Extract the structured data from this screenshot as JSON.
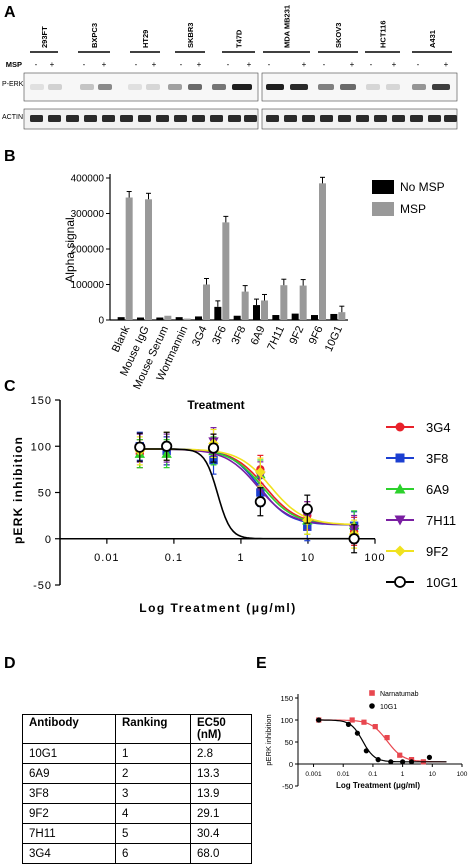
{
  "panel_labels": {
    "a": "A",
    "b": "B",
    "c": "C",
    "d": "D",
    "e": "E"
  },
  "panel_a": {
    "cell_lines": [
      "293FT",
      "BXPC3",
      "HT29",
      "SKBR3",
      "T47D",
      "MDA MB231",
      "SKOV3",
      "HCT116",
      "A431"
    ],
    "msp_label": "MSP",
    "minus": "-",
    "plus": "+",
    "row_labels": [
      "P-ERK",
      "ACTIN"
    ]
  },
  "chart_data": [
    {
      "type": "bar",
      "panel": "B",
      "ylabel": "Alpha signal",
      "ylim": [
        0,
        400000
      ],
      "yticks": [
        "0",
        "100000",
        "200000",
        "300000",
        "400000"
      ],
      "categories": [
        "Blank",
        "Mouse IgG",
        "Mouse Serum",
        "Wortmannin",
        "3G4",
        "3F6",
        "3F8",
        "6A9",
        "7H11",
        "9F2",
        "9F6",
        "10G1"
      ],
      "series": [
        {
          "name": "No MSP",
          "color": "#000000",
          "values": [
            8000,
            7000,
            7000,
            8000,
            10000,
            37000,
            12000,
            42000,
            14000,
            18000,
            14000,
            17000
          ]
        },
        {
          "name": "MSP",
          "color": "#999999",
          "values": [
            345000,
            340000,
            12000,
            4000,
            100000,
            275000,
            80000,
            55000,
            98000,
            97000,
            385000,
            22000
          ]
        }
      ]
    },
    {
      "type": "line",
      "panel": "C",
      "title": "Treatment",
      "xlabel": "Log Treatment (μg/ml)",
      "ylabel": "pERK inhibition",
      "xscale": "log",
      "xticks": [
        "0.01",
        "0.1",
        "1",
        "10",
        "100"
      ],
      "yticks": [
        "-50",
        "0",
        "50",
        "100",
        "150"
      ],
      "ylim": [
        -50,
        150
      ],
      "x": [
        0.031,
        0.078,
        0.39,
        1.95,
        9.77,
        48.8
      ],
      "series": [
        {
          "name": "3G4",
          "color": "#e8212a",
          "marker": "circle",
          "y": [
            92,
            95,
            98,
            75,
            25,
            8
          ]
        },
        {
          "name": "3F8",
          "color": "#1c3fd1",
          "marker": "square",
          "y": [
            100,
            95,
            85,
            50,
            13,
            14
          ]
        },
        {
          "name": "6A9",
          "color": "#2cd12c",
          "marker": "triangle",
          "y": [
            92,
            92,
            95,
            70,
            20,
            15
          ]
        },
        {
          "name": "7H11",
          "color": "#7a1fa2",
          "marker": "triangle-down",
          "y": [
            98,
            98,
            105,
            68,
            25,
            10
          ]
        },
        {
          "name": "9F2",
          "color": "#f0e21f",
          "marker": "diamond",
          "y": [
            95,
            100,
            103,
            72,
            20,
            5
          ]
        },
        {
          "name": "10G1",
          "color": "#000000",
          "marker": "open-circle",
          "y": [
            99,
            100,
            98,
            40,
            32,
            0
          ]
        }
      ]
    },
    {
      "type": "table",
      "panel": "D",
      "columns": [
        "Antibody",
        "Ranking",
        "EC50\n(nM)"
      ],
      "rows": [
        [
          "10G1",
          "1",
          "2.8"
        ],
        [
          "6A9",
          "2",
          "13.3"
        ],
        [
          "3F8",
          "3",
          "13.9"
        ],
        [
          "9F2",
          "4",
          "29.1"
        ],
        [
          "7H11",
          "5",
          "30.4"
        ],
        [
          "3G4",
          "6",
          "68.0"
        ]
      ]
    },
    {
      "type": "line",
      "panel": "E",
      "xlabel": "Log Treatment (μg/ml)",
      "ylabel": "pERK inhibition",
      "xscale": "log",
      "xticks": [
        "0.001",
        "0.01",
        "0.1",
        "1",
        "10",
        "100"
      ],
      "yticks": [
        "-50",
        "0",
        "50",
        "100",
        "150"
      ],
      "ylim": [
        -50,
        150
      ],
      "series": [
        {
          "name": "Narnatumab",
          "color": "#e8474f",
          "marker": "square",
          "x": [
            0.0015,
            0.02,
            0.05,
            0.12,
            0.3,
            0.8,
            2,
            5
          ],
          "y": [
            100,
            100,
            95,
            85,
            60,
            20,
            10,
            5
          ]
        },
        {
          "name": "10G1",
          "color": "#000000",
          "marker": "circle",
          "x": [
            0.0015,
            0.015,
            0.03,
            0.06,
            0.15,
            0.4,
            1,
            2,
            8
          ],
          "y": [
            100,
            90,
            70,
            30,
            10,
            5,
            5,
            5,
            15
          ]
        }
      ]
    }
  ]
}
